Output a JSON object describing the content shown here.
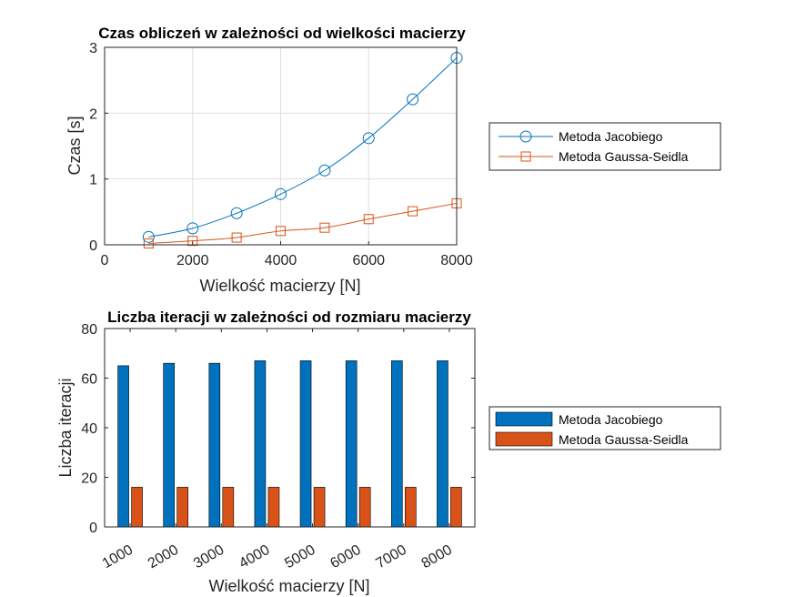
{
  "chart_data": [
    {
      "type": "line",
      "title": "Czas obliczeń w zależności od wielkości macierzy",
      "xlabel": "Wielkość macierzy [N]",
      "ylabel": "Czas [s]",
      "xlim": [
        0,
        8000
      ],
      "ylim": [
        0,
        3
      ],
      "xticks": [
        "0",
        "2000",
        "4000",
        "6000",
        "8000"
      ],
      "yticks": [
        "0",
        "1",
        "2",
        "3"
      ],
      "grid": true,
      "legend_position": "outside-right",
      "x": [
        1000,
        2000,
        3000,
        4000,
        5000,
        6000,
        7000,
        8000
      ],
      "series": [
        {
          "name": "Metoda Jacobiego",
          "color": "#0072BD",
          "marker": "circle",
          "values": [
            0.12,
            0.25,
            0.48,
            0.77,
            1.13,
            1.62,
            2.21,
            2.84
          ]
        },
        {
          "name": "Metoda Gaussa-Seidla",
          "color": "#D95319",
          "marker": "square",
          "values": [
            0.02,
            0.06,
            0.11,
            0.21,
            0.26,
            0.39,
            0.51,
            0.63
          ]
        }
      ]
    },
    {
      "type": "bar",
      "title": "Liczba iteracji w zależności od rozmiaru macierzy",
      "xlabel": "Wielkość macierzy [N]",
      "ylabel": "Liczba iteracji",
      "ylim": [
        0,
        80
      ],
      "yticks": [
        "0",
        "20",
        "40",
        "60",
        "80"
      ],
      "grid": false,
      "legend_position": "outside-right",
      "categories": [
        "1000",
        "2000",
        "3000",
        "4000",
        "5000",
        "6000",
        "7000",
        "8000"
      ],
      "series": [
        {
          "name": "Metoda Jacobiego",
          "color": "#0072BD",
          "values": [
            65,
            66,
            66,
            67,
            67,
            67,
            67,
            67
          ]
        },
        {
          "name": "Metoda Gaussa-Seidla",
          "color": "#D95319",
          "values": [
            16,
            16,
            16,
            16,
            16,
            16,
            16,
            16
          ]
        }
      ]
    }
  ]
}
